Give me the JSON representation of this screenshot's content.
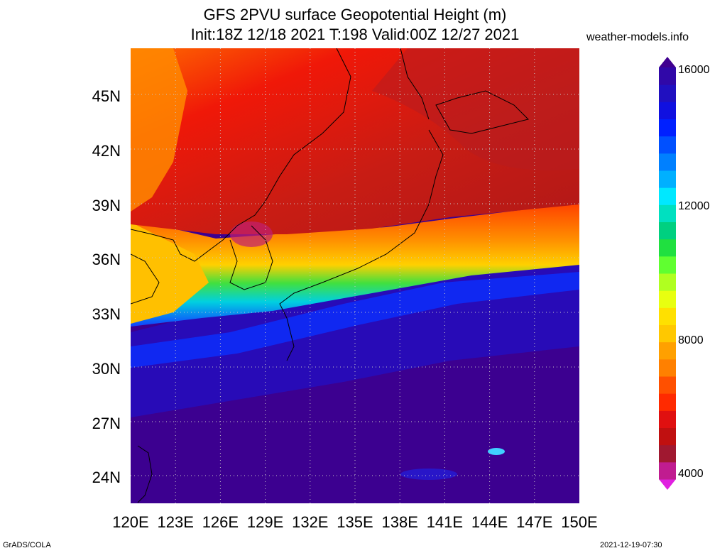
{
  "header": {
    "title_line1": "GFS 2PVU surface Geopotential Height (m)",
    "title_line2": "Init:18Z 12/18 2021 T:198 Valid:00Z 12/27 2021",
    "site": "weather-models.info"
  },
  "map": {
    "lat_labels": [
      "45N",
      "42N",
      "39N",
      "36N",
      "33N",
      "30N",
      "27N",
      "24N"
    ],
    "lon_labels": [
      "120E",
      "123E",
      "126E",
      "129E",
      "132E",
      "135E",
      "138E",
      "141E",
      "144E",
      "147E",
      "150E"
    ],
    "lon_range": [
      120,
      150
    ],
    "lat_range": [
      22.5,
      47.5
    ]
  },
  "colorbar": {
    "labels": [
      "16000",
      "12000",
      "8000",
      "4000"
    ],
    "colors": [
      "#e020e0",
      "#c01c90",
      "#a01830",
      "#c01010",
      "#e01010",
      "#ff2a00",
      "#ff5000",
      "#ff8000",
      "#ffa000",
      "#ffc800",
      "#ffe000",
      "#e8ff10",
      "#b0ff20",
      "#60ff30",
      "#20e040",
      "#00d080",
      "#00e0c0",
      "#00e8ff",
      "#00b0ff",
      "#0080ff",
      "#0050ff",
      "#0020ff",
      "#1010e0",
      "#2010c0",
      "#3008a8",
      "#400090"
    ]
  },
  "footer": {
    "credit": "GrADS/COLA",
    "timestamp": "2021-12-19-07:30"
  }
}
